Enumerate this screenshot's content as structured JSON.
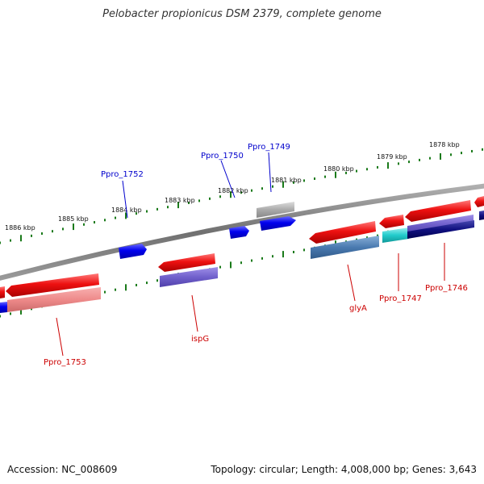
{
  "title": "Pelobacter propionicus DSM 2379, complete genome",
  "footer": {
    "accession": "Accession: NC_008609",
    "summary": "Topology: circular; Length: 4,008,000 bp; Genes: 3,643"
  },
  "colors": {
    "backbone": "#7a7a7a",
    "tick": "#1a7a1a",
    "plus_label": "#0000cc",
    "minus_label": "#cc0000"
  },
  "kbp_labels": [
    "1886 kbp",
    "1885 kbp",
    "1884 kbp",
    "1883 kbp",
    "1882 kbp",
    "1881 kbp",
    "1880 kbp",
    "1879 kbp",
    "1878 kbp"
  ],
  "gene_labels_plus": [
    "Ppro_1752",
    "Ppro_1750",
    "Ppro_1749"
  ],
  "gene_labels_minus": [
    "Ppro_1753",
    "ispG",
    "glyA",
    "Ppro_1747",
    "Ppro_1746"
  ]
}
